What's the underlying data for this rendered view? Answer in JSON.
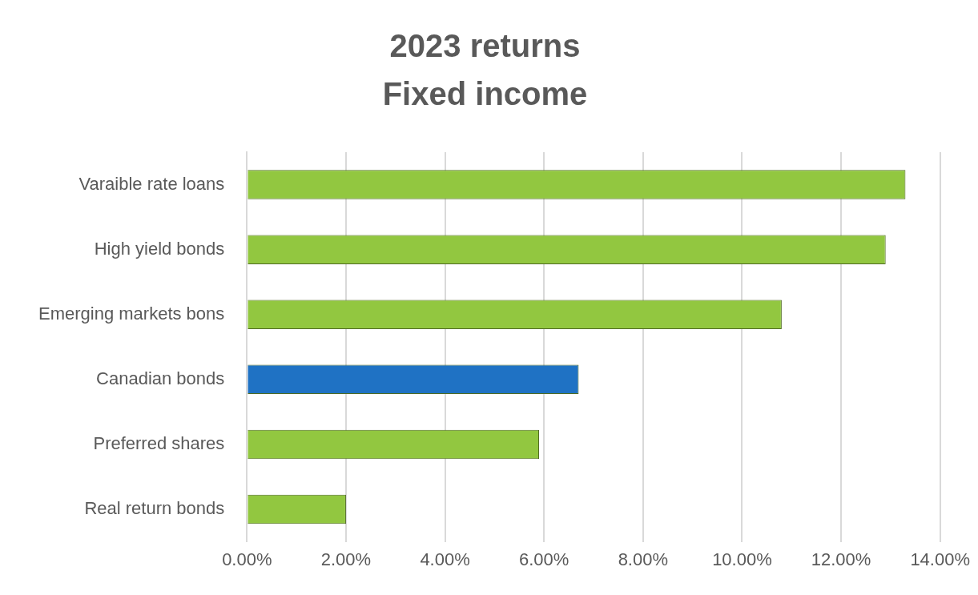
{
  "chart_data": {
    "type": "bar",
    "orientation": "horizontal",
    "title": [
      "2023 returns",
      "Fixed income"
    ],
    "categories": [
      "Varaible rate loans",
      "High yield bonds",
      "Emerging markets bons",
      "Canadian bonds",
      "Preferred shares",
      "Real return bonds"
    ],
    "values": [
      13.3,
      12.9,
      10.8,
      6.7,
      5.9,
      2.0
    ],
    "colors": [
      "#92c740",
      "#92c740",
      "#92c740",
      "#1f72c4",
      "#92c740",
      "#92c740"
    ],
    "xlim": [
      0,
      14
    ],
    "xticks": [
      {
        "value": 0,
        "label": "0.00%"
      },
      {
        "value": 2,
        "label": "2.00%"
      },
      {
        "value": 4,
        "label": "4.00%"
      },
      {
        "value": 6,
        "label": "6.00%"
      },
      {
        "value": 8,
        "label": "8.00%"
      },
      {
        "value": 10,
        "label": "10.00%"
      },
      {
        "value": 12,
        "label": "12.00%"
      },
      {
        "value": 14,
        "label": "14.00%"
      }
    ],
    "grid": "x",
    "legend": false
  }
}
